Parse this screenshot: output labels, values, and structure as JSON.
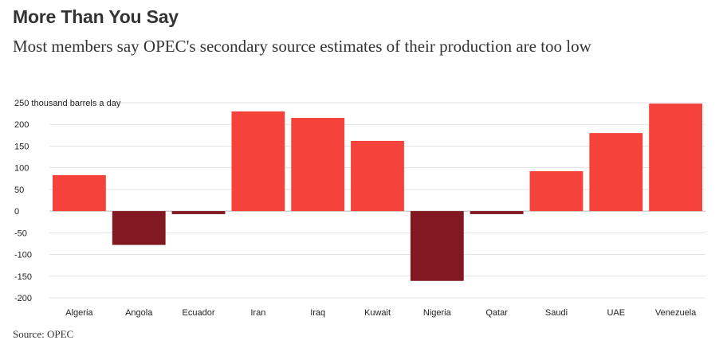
{
  "title": "More Than You Say",
  "subtitle": "Most members say OPEC's secondary source estimates of their production are too low",
  "source": "Source: OPEC",
  "colors": {
    "positive": "#f5433c",
    "negative": "#821820",
    "grid": "#e3e3e3",
    "zero": "#bbbbbb",
    "text": "#333333"
  },
  "chart_data": {
    "type": "bar",
    "title": "More Than You Say",
    "subtitle": "Most members say OPEC's secondary source estimates of their production are too low",
    "ylabel": "thousand barrels a day",
    "xlabel": "",
    "ylim": [
      -200,
      250
    ],
    "yticks": [
      -200,
      -150,
      -100,
      -50,
      0,
      50,
      100,
      150,
      200,
      250
    ],
    "top_tick_label": "250 thousand barrels a day",
    "grid": true,
    "categories": [
      "Algeria",
      "Angola",
      "Ecuador",
      "Iran",
      "Iraq",
      "Kuwait",
      "Nigeria",
      "Qatar",
      "Saudi",
      "UAE",
      "Venezuela"
    ],
    "values": [
      83,
      -78,
      -7,
      230,
      215,
      162,
      -161,
      -7,
      92,
      180,
      248
    ]
  }
}
